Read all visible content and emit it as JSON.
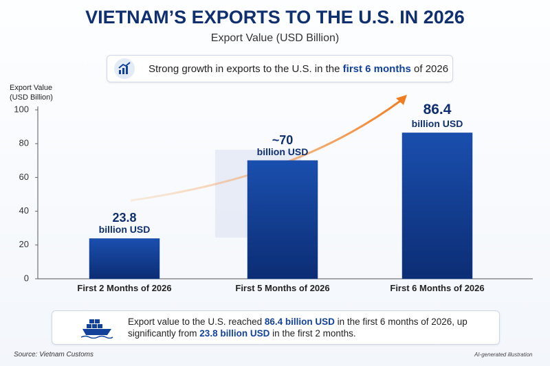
{
  "title": "VIETNAM’S EXPORTS TO THE U.S. IN 2026",
  "subtitle": "Export Value (USD Billion)",
  "banner": [
    "Strong growth in exports to the U.S. in the ",
    "first 6 months",
    " of 2026"
  ],
  "chart_data": {
    "type": "bar",
    "y_label": "Export Value (USD Billion)",
    "categories": [
      "First 2 Months of 2026",
      "First 5 Months of 2026",
      "First 6 Months of 2026"
    ],
    "values": [
      23.8,
      70,
      86.4
    ],
    "value_labels": [
      "23.8",
      "~70",
      "86.4"
    ],
    "value_unit": "billion USD",
    "color": "#12419a",
    "ylim": [
      0,
      100
    ],
    "yticks": [
      0,
      20,
      40,
      60,
      80,
      100
    ],
    "grid": false
  },
  "note": [
    "Export value to the U.S. reached ",
    "86.4 billion USD",
    " in the first 6 months of 2026, up significantly from ",
    "23.8 billion USD",
    " in the first 2 months."
  ],
  "source": "Source: Vietnam Customs",
  "credit": "AI-generated illustration"
}
